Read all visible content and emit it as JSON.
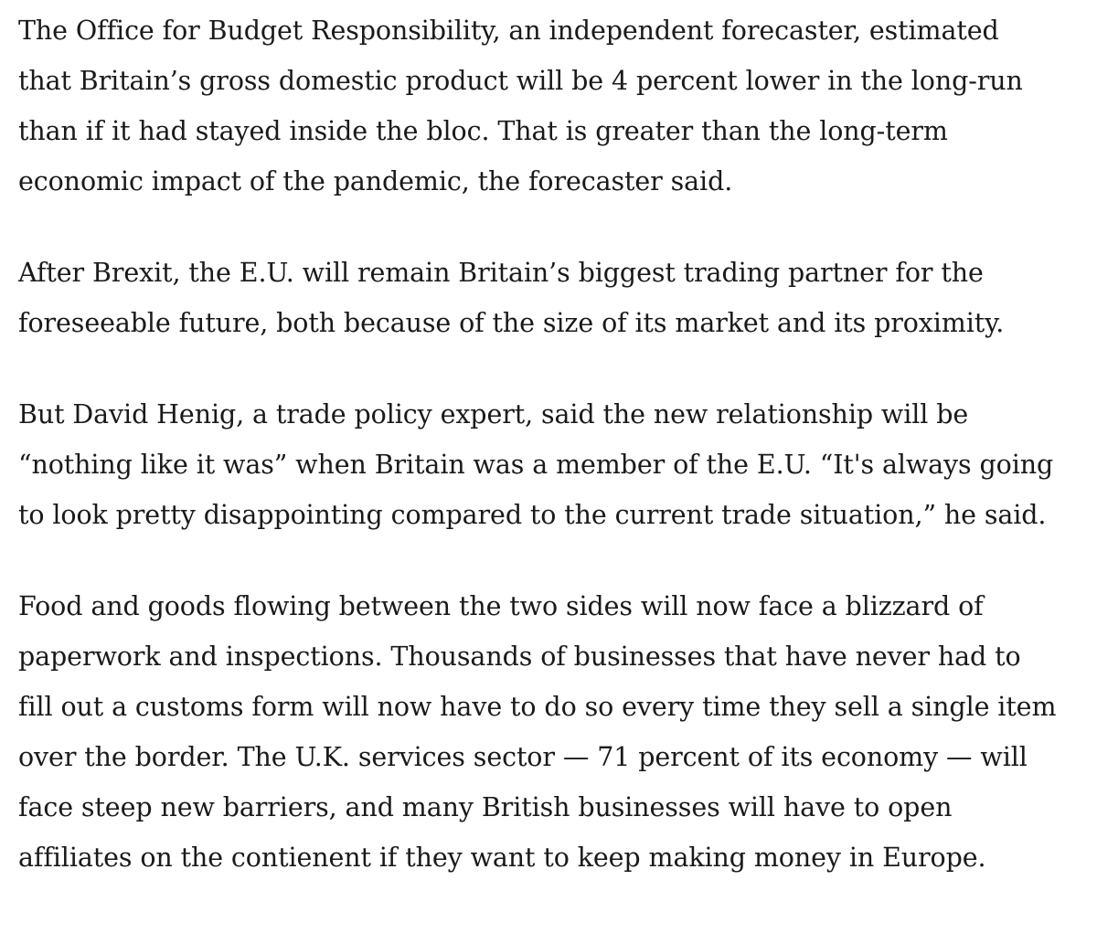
{
  "article": {
    "paragraphs": [
      {
        "lines": [
          "The Office for Budget Responsibility, an independent forecaster, estimated",
          "that Britain’s gross domestic product will be 4 percent lower in the long-run",
          "than if it had stayed inside the bloc. That is greater than the long-term",
          "economic impact of the pandemic, the forecaster said."
        ]
      },
      {
        "lines": [
          "After Brexit, the E.U. will remain Britain’s biggest trading partner for the",
          "foreseeable future, both because of the size of its market and its proximity."
        ]
      },
      {
        "lines": [
          "But David Henig, a trade policy expert, said the new relationship will be",
          "“nothing like it was” when Britain was a member of the E.U. “It's always going",
          "to look pretty disappointing compared to the current trade situation,” he said."
        ]
      },
      {
        "lines": [
          "Food and goods flowing between the two sides will now face a blizzard of",
          "paperwork and inspections. Thousands of businesses that have never had to",
          "fill out a customs form will now have to do so every time they sell a single item",
          "over the border. The U.K. services sector — 71 percent of its economy — will",
          "face steep new barriers, and many British businesses will have to open",
          "affiliates on the contienent if they want to keep making money in Europe."
        ]
      }
    ]
  }
}
